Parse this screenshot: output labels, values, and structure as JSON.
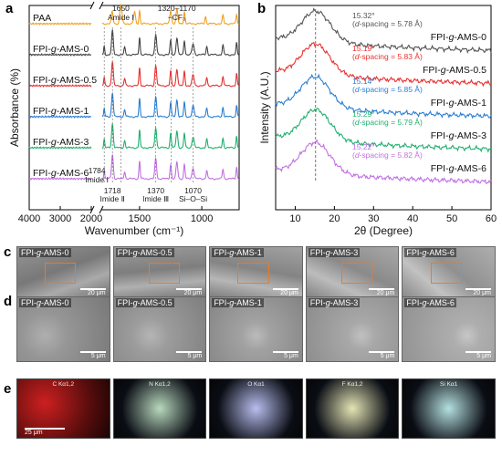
{
  "panels": {
    "a": "a",
    "b": "b",
    "c": "c",
    "d": "d",
    "e": "e"
  },
  "chart_data": [
    {
      "type": "line",
      "panel": "a",
      "xlabel": "Wavenumber (cm⁻¹)",
      "ylabel": "Absorbance (%)",
      "xlim": [
        4000,
        700
      ],
      "x_break": [
        2000,
        1800
      ],
      "xticks": [
        4000,
        3000,
        2000,
        1500,
        1000
      ],
      "xtick_labels": [
        "4000",
        "3000",
        "2000",
        "1500",
        "1000"
      ],
      "series": [
        {
          "name": "PAA",
          "color": "#f0a020"
        },
        {
          "name": "FPI-g-AMS-0",
          "color": "#444444"
        },
        {
          "name": "FPI-g-AMS-0.5",
          "color": "#e83030"
        },
        {
          "name": "FPI-g-AMS-1",
          "color": "#2a7fd4"
        },
        {
          "name": "FPI-g-AMS-3",
          "color": "#20b070"
        },
        {
          "name": "FPI-g-AMS-6",
          "color": "#c070e0"
        }
      ],
      "annotations": [
        {
          "text": "1650",
          "x": 1650
        },
        {
          "text": "Amide Ⅰ",
          "x": 1650
        },
        {
          "text": "1320–1170",
          "x": 1245
        },
        {
          "text": "−CF₃",
          "x": 1245
        },
        {
          "text": "1784",
          "x": 1784
        },
        {
          "text": "Imide Ⅰ",
          "x": 1784
        },
        {
          "text": "1718",
          "x": 1718
        },
        {
          "text": "Imide Ⅱ",
          "x": 1718
        },
        {
          "text": "1370",
          "x": 1370
        },
        {
          "text": "Imide Ⅲ",
          "x": 1370
        },
        {
          "text": "1070",
          "x": 1070
        },
        {
          "text": "Si–O–Si",
          "x": 1070
        }
      ]
    },
    {
      "type": "line",
      "panel": "b",
      "xlabel": "2θ (Degree)",
      "ylabel": "Intensity (A.U.)",
      "xlim": [
        5,
        60
      ],
      "xticks": [
        10,
        20,
        30,
        40,
        50,
        60
      ],
      "series": [
        {
          "name": "FPI-g-AMS-0",
          "color": "#555555",
          "peak": "15.32°",
          "spacing": "(d-spacing = 5.78 Å)",
          "peak_x": 15.32
        },
        {
          "name": "FPI-g-AMS-0.5",
          "color": "#e83030",
          "peak": "15.19°",
          "spacing": "(d-spacing = 5.83 Å)",
          "peak_x": 15.19
        },
        {
          "name": "FPI-g-AMS-1",
          "color": "#2a7fd4",
          "peak": "15.14°",
          "spacing": "(d-spacing = 5.85 Å)",
          "peak_x": 15.14
        },
        {
          "name": "FPI-g-AMS-3",
          "color": "#20b070",
          "peak": "15.29°",
          "spacing": "(d-spacing = 5.79 Å)",
          "peak_x": 15.29
        },
        {
          "name": "FPI-g-AMS-6",
          "color": "#c070e0",
          "peak": "15.22°",
          "spacing": "(d-spacing = 5.82 Å)",
          "peak_x": 15.22
        }
      ]
    }
  ],
  "sem_c": [
    {
      "label": "FPI-g-AMS-0",
      "scale": "20 μm"
    },
    {
      "label": "FPI-g-AMS-0.5",
      "scale": "20 μm"
    },
    {
      "label": "FPI-g-AMS-1",
      "scale": "20 μm"
    },
    {
      "label": "FPI-g-AMS-3",
      "scale": "20 μm"
    },
    {
      "label": "FPI-g-AMS-6",
      "scale": "20 μm"
    }
  ],
  "sem_d": [
    {
      "label": "FPI-g-AMS-0",
      "scale": "5 μm"
    },
    {
      "label": "FPI-g-AMS-0.5",
      "scale": "5 μm"
    },
    {
      "label": "FPI-g-AMS-1",
      "scale": "5 μm"
    },
    {
      "label": "FPI-g-AMS-3",
      "scale": "5 μm"
    },
    {
      "label": "FPI-g-AMS-6",
      "scale": "5 μm"
    }
  ],
  "eds": [
    {
      "label": "C Kα1,2",
      "color": "#cc2020"
    },
    {
      "label": "N Kα1,2",
      "color": "#2a8a3a"
    },
    {
      "label": "O Kα1",
      "color": "#2a3acc"
    },
    {
      "label": "F Kα1,2",
      "color": "#b0b020"
    },
    {
      "label": "Si Kα1",
      "color": "#20a0a0"
    }
  ],
  "eds_scale": "25 μm"
}
